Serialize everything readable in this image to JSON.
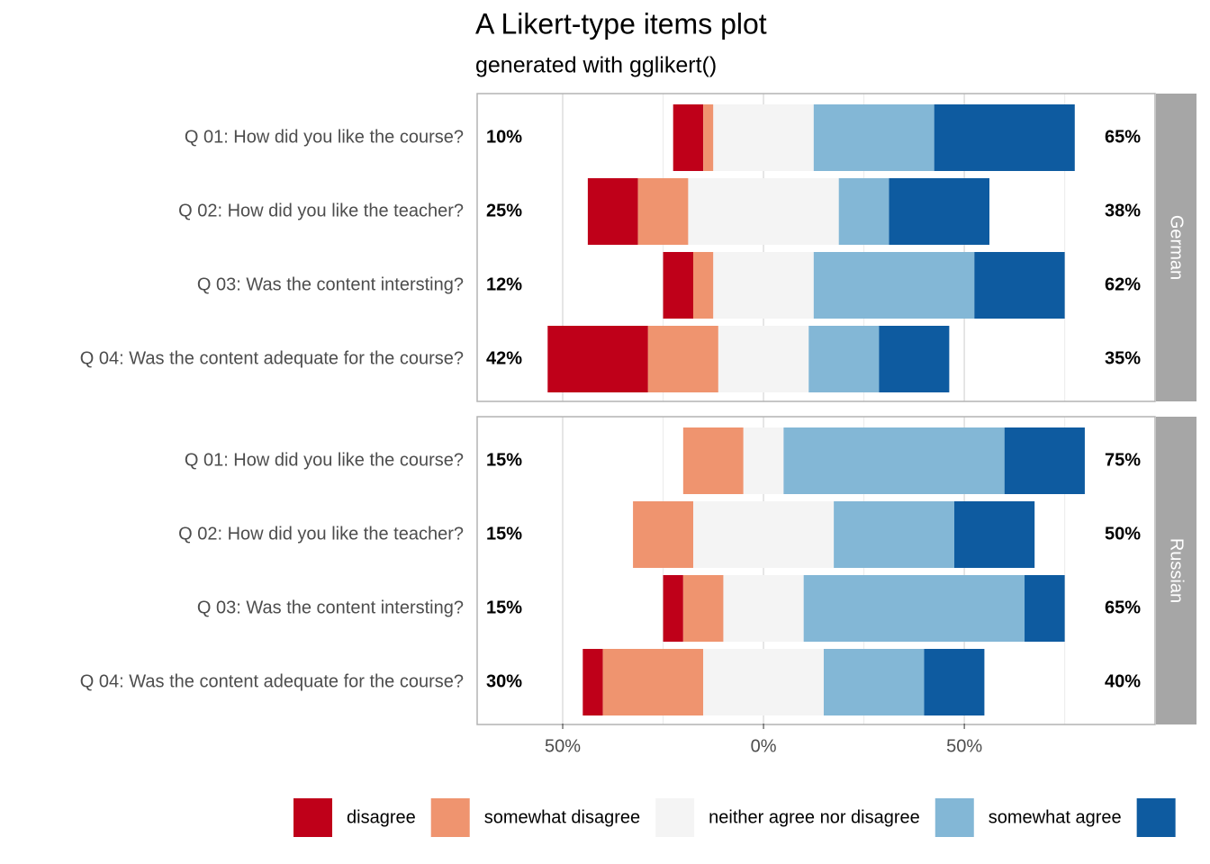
{
  "chart_data": {
    "type": "likert",
    "title": "A Likert-type items plot",
    "subtitle": "generated with gglikert()",
    "series": [
      {
        "name": "disagree",
        "color": "#bf0019"
      },
      {
        "name": "somewhat disagree",
        "color": "#ef946f"
      },
      {
        "name": "neither agree nor disagree",
        "color": "#f4f4f4"
      },
      {
        "name": "somewhat agree",
        "color": "#83b7d6"
      },
      {
        "name": null,
        "color": "#0e5ba0"
      }
    ],
    "xlim": [
      -71.3,
      97.5
    ],
    "xticks": [
      {
        "value": -50,
        "label": "50%"
      },
      {
        "value": 0,
        "label": "0%"
      },
      {
        "value": 50,
        "label": "50%"
      }
    ],
    "minor_xticks": [
      -25,
      25,
      75
    ],
    "grid": true,
    "panels": [
      {
        "strip": "German",
        "categories": [
          "Q 01: How did you like the course?",
          "Q 02: How did you like the teacher?",
          "Q 03: Was the content intersting?",
          "Q 04: Was the content adequate for the course?"
        ],
        "series": [
          {
            "values": [
              7.5,
              12.5,
              7.5,
              25
            ]
          },
          {
            "values": [
              2.5,
              12.5,
              5,
              17.5
            ]
          },
          {
            "values": [
              25,
              37.5,
              25,
              22.5
            ]
          },
          {
            "values": [
              30,
              12.5,
              40,
              17.5
            ]
          },
          {
            "values": [
              35,
              25,
              22.5,
              17.5
            ]
          }
        ],
        "left_labels": [
          "10%",
          "25%",
          "12%",
          "42%"
        ],
        "right_labels": [
          "65%",
          "38%",
          "62%",
          "35%"
        ]
      },
      {
        "strip": "Russian",
        "categories": [
          "Q 01: How did you like the course?",
          "Q 02: How did you like the teacher?",
          "Q 03: Was the content intersting?",
          "Q 04: Was the content adequate for the course?"
        ],
        "series": [
          {
            "values": [
              0,
              0,
              5,
              5
            ]
          },
          {
            "values": [
              15,
              15,
              10,
              25
            ]
          },
          {
            "values": [
              10,
              35,
              20,
              30
            ]
          },
          {
            "values": [
              55,
              30,
              55,
              25
            ]
          },
          {
            "values": [
              20,
              20,
              10,
              15
            ]
          }
        ],
        "left_labels": [
          "15%",
          "15%",
          "15%",
          "30%"
        ],
        "right_labels": [
          "75%",
          "50%",
          "65%",
          "40%"
        ]
      }
    ]
  }
}
